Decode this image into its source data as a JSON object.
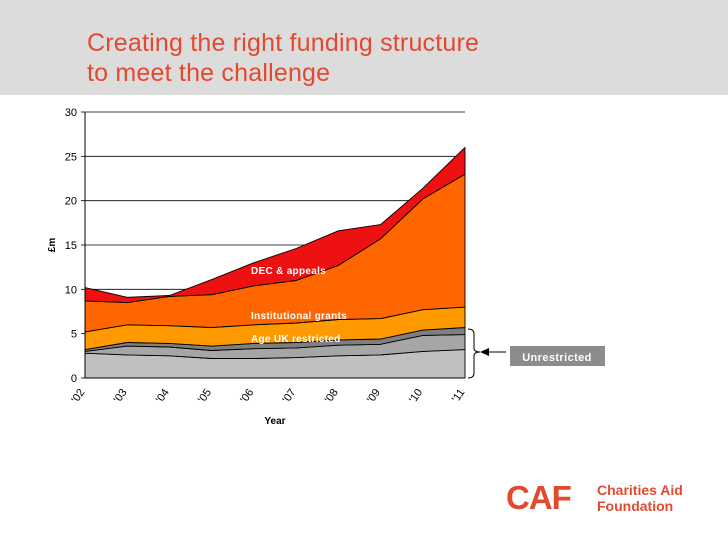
{
  "slide": {
    "title_line1": "Creating the right funding structure",
    "title_line2": "to meet the challenge"
  },
  "logo": {
    "mark": "CAF",
    "name_line1": "Charities Aid",
    "name_line2": "Foundation"
  },
  "colors": {
    "accent": "#e2492f",
    "header_bg": "#dcdcdc"
  },
  "chart_data": {
    "type": "area",
    "stacked": true,
    "xlabel": "Year",
    "ylabel": "£m",
    "ylim": [
      0,
      30
    ],
    "yticks": [
      0,
      5,
      10,
      15,
      20,
      25,
      30
    ],
    "grid": true,
    "categories": [
      "'02",
      "'03",
      "'04",
      "'05",
      "'06",
      "'07",
      "'08",
      "'09",
      "'10",
      "'11"
    ],
    "series": [
      {
        "name": "Unrestricted (base)",
        "color": "#c0c0c0",
        "values": [
          2.8,
          2.6,
          2.5,
          2.2,
          2.2,
          2.3,
          2.5,
          2.6,
          3.0,
          3.2
        ]
      },
      {
        "name": "Unrestricted (middle)",
        "color": "#a6a6a6",
        "values": [
          0.2,
          1.0,
          1.0,
          0.9,
          1.1,
          1.1,
          1.2,
          1.2,
          1.8,
          1.7
        ]
      },
      {
        "name": "Unrestricted (top)",
        "color": "#7f7f7f",
        "values": [
          0.2,
          0.4,
          0.4,
          0.5,
          0.6,
          0.6,
          0.6,
          0.6,
          0.6,
          0.8
        ]
      },
      {
        "name": "Age UK restricted",
        "color": "#ff9900",
        "values": [
          2.0,
          2.0,
          2.0,
          2.1,
          2.1,
          2.2,
          2.3,
          2.3,
          2.3,
          2.3
        ]
      },
      {
        "name": "Institutional grants",
        "color": "#ff6600",
        "values": [
          3.5,
          2.5,
          3.3,
          3.7,
          4.4,
          4.8,
          6.1,
          9.0,
          12.5,
          15.0
        ]
      },
      {
        "name": "DEC & appeals",
        "color": "#ee1111",
        "values": [
          1.5,
          0.6,
          0.1,
          1.7,
          2.6,
          3.6,
          3.9,
          1.6,
          1.2,
          3.0
        ]
      }
    ],
    "annotations": [
      {
        "text": "DEC & appeals",
        "series": "DEC & appeals"
      },
      {
        "text": "Institutional grants",
        "series": "Institutional grants"
      },
      {
        "text": "Age UK restricted",
        "series": "Age UK restricted"
      },
      {
        "text": "Unrestricted",
        "series": "Unrestricted",
        "style": "callout"
      }
    ]
  }
}
